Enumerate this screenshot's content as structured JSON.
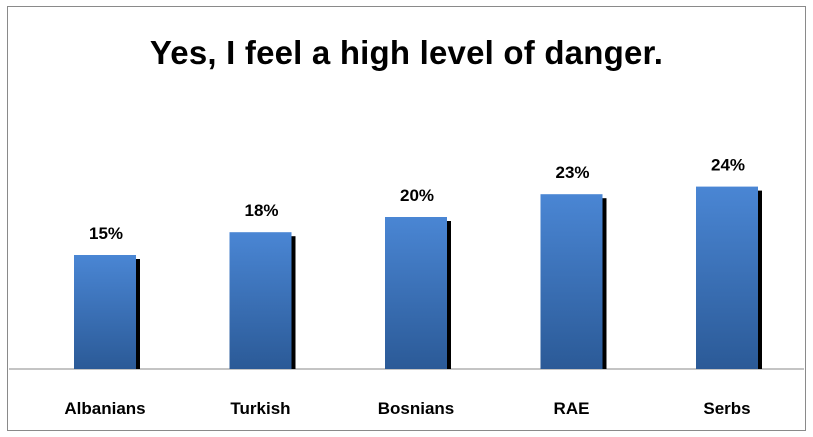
{
  "chart_data": {
    "type": "bar",
    "title": "Yes, I feel a high level of danger.",
    "categories": [
      "Albanians",
      "Turkish",
      "Bosnians",
      "RAE",
      "Serbs"
    ],
    "values": [
      15,
      18,
      20,
      23,
      24
    ],
    "value_labels": [
      "15%",
      "18%",
      "20%",
      "23%",
      "24%"
    ],
    "unit": "%",
    "ylim": [
      0,
      30
    ],
    "grid": false,
    "legend": "none",
    "colors": {
      "bar_top": "#4a86d4",
      "bar_bottom": "#2b5a97",
      "shadow": "#000000",
      "axis": "#8a8a8a",
      "border": "#8a8a8a"
    }
  }
}
